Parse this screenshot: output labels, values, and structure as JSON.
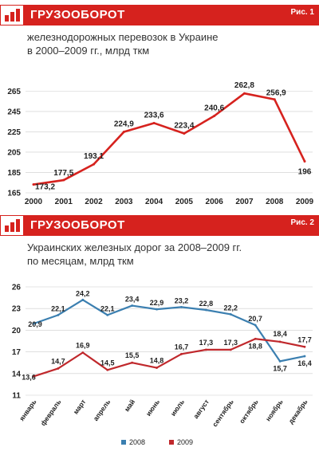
{
  "chart1": {
    "title": "ГРУЗООБОРОТ",
    "figure": "Рис. 1",
    "subtitle_line1": "железнодорожных перевозок в Украине",
    "subtitle_line2": "в 2000–2009 гг., млрд ткм",
    "colors": {
      "banner": "#d6221e",
      "line": "#d6221e"
    }
  },
  "chart2": {
    "title": "ГРУЗООБОРОТ",
    "figure": "Рис. 2",
    "subtitle_line1": "Украинских железных дорог за 2008–2009 гг.",
    "subtitle_line2": "по месяцам, млрд ткм",
    "colors": {
      "banner": "#d6221e",
      "s2008": "#3b7fb0",
      "s2009": "#c0282c"
    }
  },
  "chart_data": [
    {
      "type": "line",
      "title": "ГРУЗООБОРОТ",
      "categories": [
        "2000",
        "2001",
        "2002",
        "2003",
        "2004",
        "2005",
        "2006",
        "2007",
        "2008",
        "2009"
      ],
      "values": [
        173.2,
        177.5,
        193.1,
        224.9,
        233.6,
        223.4,
        240.6,
        262.8,
        256.9,
        196
      ],
      "labels": [
        "173,2",
        "177,5",
        "193,1",
        "224,9",
        "233,6",
        "223,4",
        "240,6",
        "262,8",
        "256,9",
        "196"
      ],
      "yticks": [
        165,
        185,
        205,
        225,
        245,
        265
      ],
      "ylim": [
        165,
        270
      ],
      "grid": true
    },
    {
      "type": "line",
      "title": "ГРУЗООБОРОТ",
      "categories": [
        "январь",
        "февраль",
        "март",
        "апрель",
        "май",
        "июнь",
        "июль",
        "август",
        "сентябрь",
        "октябрь",
        "ноябрь",
        "декабрь"
      ],
      "series": [
        {
          "name": "2008",
          "values": [
            20.9,
            22.1,
            24.2,
            22.1,
            23.4,
            22.9,
            23.2,
            22.8,
            22.2,
            20.7,
            15.7,
            16.4
          ],
          "labels": [
            "20,9",
            "22,1",
            "24,2",
            "22,1",
            "23,4",
            "22,9",
            "23,2",
            "22,8",
            "22,2",
            "20,7",
            "15,7",
            "16,4"
          ]
        },
        {
          "name": "2009",
          "values": [
            13.6,
            14.7,
            16.9,
            14.5,
            15.5,
            14.8,
            16.7,
            17.3,
            17.3,
            18.8,
            18.4,
            17.7
          ],
          "labels": [
            "13,6",
            "14,7",
            "16,9",
            "14,5",
            "15,5",
            "14,8",
            "16,7",
            "17,3",
            "17,3",
            "18,8",
            "18,4",
            "17,7"
          ]
        }
      ],
      "yticks": [
        11,
        14,
        17,
        20,
        23,
        26
      ],
      "ylim": [
        11,
        26
      ],
      "grid": true,
      "legend": "bottom"
    }
  ]
}
